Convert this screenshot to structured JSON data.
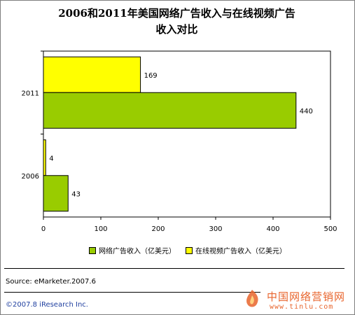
{
  "title_line1": "2006和2011年美国网络广告收入与在线视频广告",
  "title_line2": "收入对比",
  "chart_data": {
    "type": "bar",
    "orientation": "horizontal",
    "categories": [
      "2011",
      "2006"
    ],
    "series": [
      {
        "name": "网络广告收入（亿美元）",
        "values": [
          440,
          43
        ],
        "color": "#99cc00"
      },
      {
        "name": "在线视频广告收入（亿美元）",
        "values": [
          169,
          4
        ],
        "color": "#ffff00"
      }
    ],
    "xlim": [
      0,
      500
    ],
    "xticks": [
      "0",
      "100",
      "200",
      "300",
      "400",
      "500"
    ],
    "grid": false,
    "legend_position": "bottom"
  },
  "legend": {
    "item1": "网络广告收入（亿美元）",
    "item2": "在线视频广告收入（亿美元）"
  },
  "source": "Source: eMarketer.2007.6",
  "copyright": "©2007.8 iResearch Inc.",
  "watermark": {
    "name_cn": "中国网络营销网",
    "url": "www.tinlu.com"
  }
}
